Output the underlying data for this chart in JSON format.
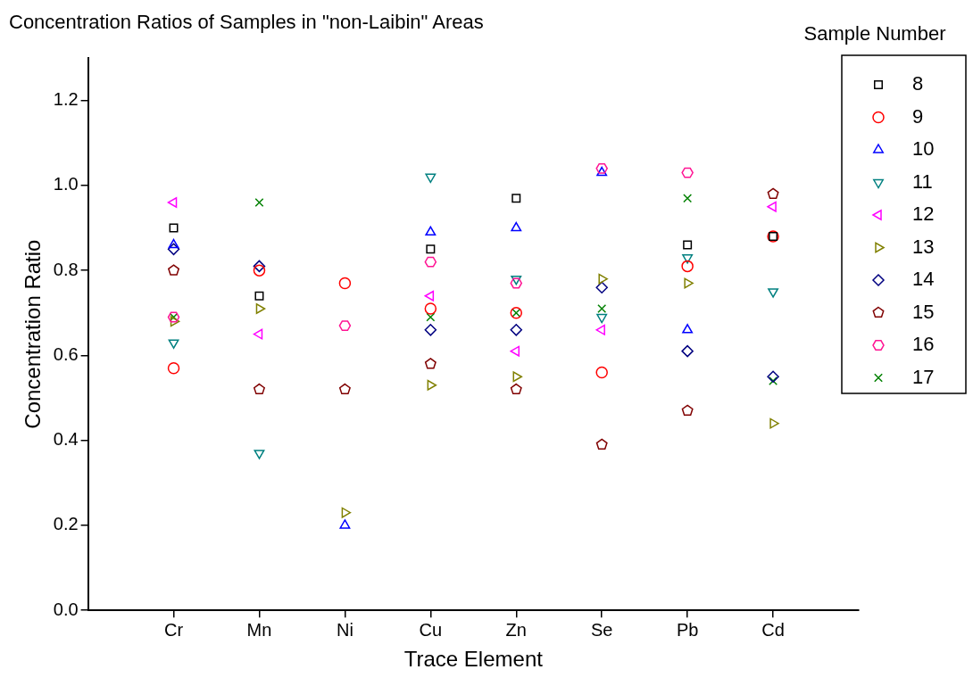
{
  "chart_data": {
    "type": "scatter",
    "title": "Concentration Ratios of Samples in \"non-Laibin\" Areas",
    "xlabel": "Trace Element",
    "ylabel": "Concentration Ratio",
    "legend_title": "Sample Number",
    "legend": "top right",
    "grid": false,
    "categories": [
      "Cr",
      "Mn",
      "Ni",
      "Cu",
      "Zn",
      "Se",
      "Pb",
      "Cd"
    ],
    "ylim": [
      0,
      1.3
    ],
    "yticks": [
      {
        "value": 0,
        "label": "0.0"
      },
      0.2,
      0.4,
      0.6,
      0.8,
      {
        "value": 1,
        "label": "1.0"
      },
      1.2
    ],
    "series": [
      {
        "name": "8",
        "color": "#000000",
        "marker": "square",
        "values": [
          0.9,
          0.74,
          null,
          0.85,
          0.97,
          null,
          0.86,
          0.88
        ]
      },
      {
        "name": "9",
        "color": "#ff0000",
        "marker": "circle",
        "values": [
          0.57,
          0.8,
          0.77,
          0.71,
          0.7,
          0.56,
          0.81,
          0.88
        ]
      },
      {
        "name": "10",
        "color": "#0000ff",
        "marker": "triangle",
        "values": [
          0.86,
          null,
          0.2,
          0.89,
          0.9,
          1.03,
          0.66,
          null
        ]
      },
      {
        "name": "11",
        "color": "#008080",
        "marker": "triangle-down",
        "values": [
          0.63,
          0.37,
          null,
          1.02,
          0.78,
          0.69,
          0.83,
          0.75
        ]
      },
      {
        "name": "12",
        "color": "#ff00ff",
        "marker": "triangle-left",
        "values": [
          0.96,
          0.65,
          null,
          0.74,
          0.61,
          0.66,
          null,
          0.95
        ]
      },
      {
        "name": "13",
        "color": "#808000",
        "marker": "triangle-right",
        "values": [
          0.68,
          0.71,
          0.23,
          0.53,
          0.55,
          0.78,
          0.77,
          0.44
        ]
      },
      {
        "name": "14",
        "color": "#000080",
        "marker": "diamond",
        "values": [
          0.85,
          0.81,
          null,
          0.66,
          0.66,
          0.76,
          0.61,
          0.55
        ]
      },
      {
        "name": "15",
        "color": "#800000",
        "values": [
          0.8,
          0.52,
          0.52,
          0.58,
          0.52,
          0.39,
          0.47,
          0.98
        ]
      },
      {
        "name": "16",
        "color": "#ff1493",
        "values": [
          0.69,
          null,
          0.67,
          0.82,
          0.77,
          1.04,
          1.03,
          null
        ]
      },
      {
        "name": "17",
        "color": "#008000",
        "marker": "cross",
        "values": [
          0.69,
          0.96,
          null,
          0.69,
          0.7,
          0.71,
          0.97,
          0.54
        ]
      }
    ]
  }
}
